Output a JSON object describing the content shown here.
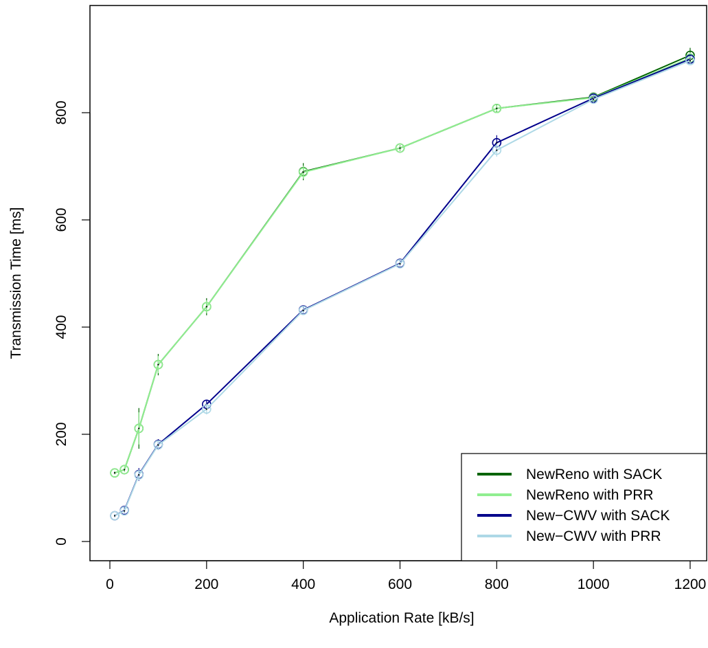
{
  "chart_data": {
    "type": "line",
    "title": "",
    "xlabel": "Application Rate [kB/s]",
    "ylabel": "Transmission Time [ms]",
    "xlim": [
      -40,
      1240
    ],
    "ylim": [
      -40,
      1000
    ],
    "xticks": [
      0,
      200,
      400,
      600,
      800,
      1000,
      1200
    ],
    "yticks": [
      0,
      200,
      400,
      600,
      800
    ],
    "grid": false,
    "legend_position": "bottom-right",
    "series": [
      {
        "name": "NewReno with SACK",
        "color": "#006400",
        "x": [
          10,
          30,
          60,
          100,
          200,
          400,
          600,
          800,
          1000,
          1200
        ],
        "y": [
          128,
          134,
          211,
          330,
          438,
          690,
          734,
          808,
          829,
          907
        ],
        "err": [
          3,
          4,
          38,
          20,
          16,
          16,
          5,
          8,
          6,
          14
        ]
      },
      {
        "name": "NewReno with PRR",
        "color": "#90ee90",
        "x": [
          10,
          30,
          60,
          100,
          200,
          400,
          600,
          800,
          1000,
          1200
        ],
        "y": [
          128,
          134,
          211,
          330,
          438,
          689,
          734,
          808,
          828,
          902
        ],
        "err": [
          3,
          4,
          30,
          16,
          12,
          12,
          4,
          6,
          5,
          10
        ]
      },
      {
        "name": "New−CWV with SACK",
        "color": "#00008b",
        "x": [
          10,
          30,
          60,
          100,
          200,
          400,
          600,
          800,
          1000,
          1200
        ],
        "y": [
          48,
          58,
          125,
          181,
          256,
          432,
          519,
          744,
          827,
          900
        ],
        "err": [
          3,
          6,
          12,
          10,
          8,
          6,
          6,
          14,
          6,
          8
        ]
      },
      {
        "name": "New−CWV with PRR",
        "color": "#add8e6",
        "x": [
          10,
          30,
          60,
          100,
          200,
          400,
          600,
          800,
          1000,
          1200
        ],
        "y": [
          48,
          57,
          124,
          180,
          247,
          431,
          518,
          730,
          825,
          897
        ],
        "err": [
          3,
          5,
          10,
          8,
          10,
          6,
          6,
          12,
          6,
          8
        ]
      }
    ]
  }
}
